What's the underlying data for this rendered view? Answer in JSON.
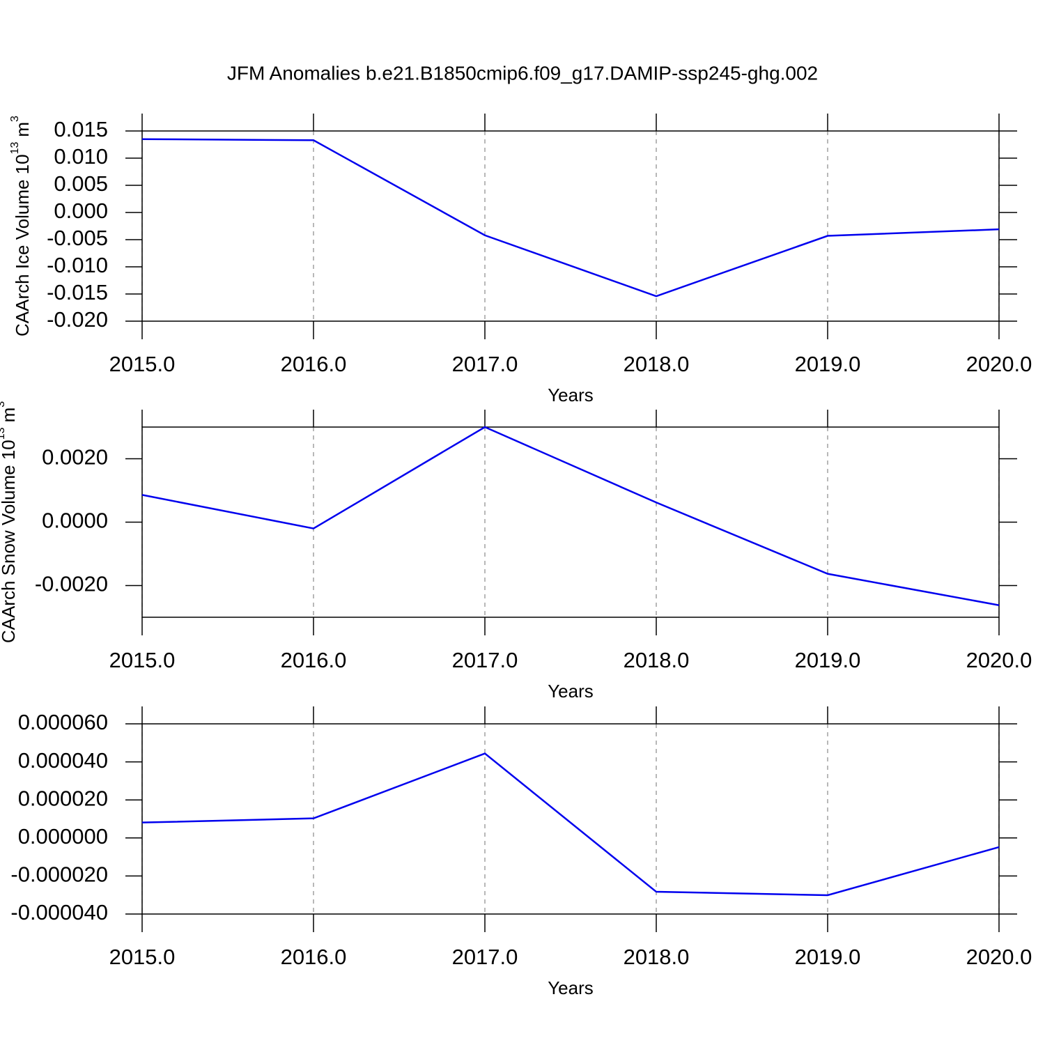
{
  "chart_data": [
    {
      "type": "line",
      "title": "JFM Anomalies b.e21.B1850cmip6.f09_g17.DAMIP-ssp245-ghg.002",
      "x": [
        2015,
        2016,
        2017,
        2018,
        2019,
        2020
      ],
      "values": [
        0.0135,
        0.0133,
        -0.0042,
        -0.0154,
        -0.0043,
        -0.0031
      ],
      "color": "#0000ee",
      "xlim": [
        2015,
        2020
      ],
      "xticks": [
        {
          "value": 2015,
          "label": "2015.0"
        },
        {
          "value": 2016,
          "label": "2016.0"
        },
        {
          "value": 2017,
          "label": "2017.0"
        },
        {
          "value": 2018,
          "label": "2018.0"
        },
        {
          "value": 2019,
          "label": "2019.0"
        },
        {
          "value": 2020,
          "label": "2020.0"
        }
      ],
      "ylim": [
        -0.02,
        0.015
      ],
      "yticks": [
        0.015,
        {
          "value": 0.01,
          "label": "0.010"
        },
        0.005,
        {
          "value": 0,
          "label": "0.000"
        },
        -0.005,
        {
          "value": -0.01,
          "label": "-0.010"
        },
        -0.015,
        {
          "value": -0.02,
          "label": "-0.020"
        }
      ],
      "x_label": "Years",
      "y_label": {
        "text": "CAArch Ice Volume 10",
        "exponent": "13",
        "unit": "m",
        "unit_exponent": "3"
      },
      "grid": "x"
    },
    {
      "type": "line",
      "x": [
        2015,
        2016,
        2017,
        2018,
        2019,
        2020
      ],
      "values": [
        0.00086,
        -0.0002,
        0.003,
        0.00062,
        -0.00163,
        -0.00262
      ],
      "color": "#0000ee",
      "xlim": [
        2015,
        2020
      ],
      "xticks": [
        {
          "value": 2015,
          "label": "2015.0"
        },
        {
          "value": 2016,
          "label": "2016.0"
        },
        {
          "value": 2017,
          "label": "2017.0"
        },
        {
          "value": 2018,
          "label": "2018.0"
        },
        {
          "value": 2019,
          "label": "2019.0"
        },
        {
          "value": 2020,
          "label": "2020.0"
        }
      ],
      "ylim": [
        -0.003,
        0.003
      ],
      "yticks": [
        {
          "value": 0.002,
          "label": "0.0020"
        },
        {
          "value": 0,
          "label": "0.0000"
        },
        {
          "value": -0.002,
          "label": "-0.0020"
        }
      ],
      "x_label": "Years",
      "y_label": {
        "text": "CAArch Snow Volume 10",
        "exponent": "13",
        "unit": "m",
        "unit_exponent": "3"
      },
      "grid": "x"
    },
    {
      "type": "line",
      "x": [
        2015,
        2016,
        2017,
        2018,
        2019,
        2020
      ],
      "values": [
        8.1e-06,
        1.03e-05,
        4.44e-05,
        -2.83e-05,
        -3.01e-05,
        -4.8e-06
      ],
      "color": "#0000ee",
      "xlim": [
        2015,
        2020
      ],
      "xticks": [
        {
          "value": 2015,
          "label": "2015.0"
        },
        {
          "value": 2016,
          "label": "2016.0"
        },
        {
          "value": 2017,
          "label": "2017.0"
        },
        {
          "value": 2018,
          "label": "2018.0"
        },
        {
          "value": 2019,
          "label": "2019.0"
        },
        {
          "value": 2020,
          "label": "2020.0"
        }
      ],
      "ylim": [
        -4e-05,
        6e-05
      ],
      "yticks": [
        {
          "value": 6e-05,
          "label": "0.000060"
        },
        {
          "value": 4e-05,
          "label": "0.000040"
        },
        {
          "value": 2e-05,
          "label": "0.000020"
        },
        {
          "value": 0,
          "label": "0.000000"
        },
        {
          "value": -2e-05,
          "label": "-0.000020"
        },
        {
          "value": -4e-05,
          "label": "-0.000040"
        }
      ],
      "x_label": "Years",
      "grid": "x"
    }
  ]
}
